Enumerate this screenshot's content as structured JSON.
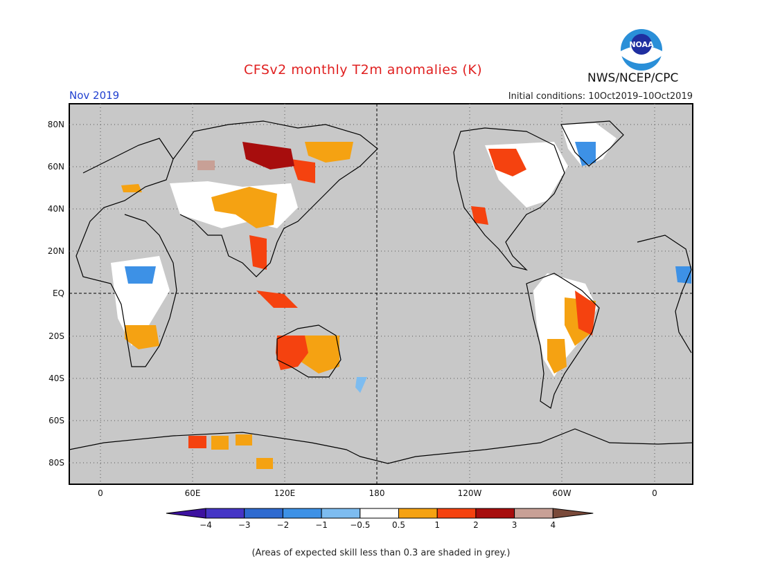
{
  "header": {
    "title": "CFSv2 monthly T2m anomalies (K)",
    "month": "Nov 2019",
    "initial_conditions": "Initial conditions: 10Oct2019–10Oct2019",
    "agency": "NWS/NCEP/CPC",
    "logo_text": "NOAA"
  },
  "map": {
    "lat_labels": [
      "80N",
      "60N",
      "40N",
      "20N",
      "EQ",
      "20S",
      "40S",
      "60S",
      "80S"
    ],
    "lon_labels": [
      "0",
      "60E",
      "120E",
      "180",
      "120W",
      "60W",
      "0"
    ],
    "background": "#c8c8c8"
  },
  "colorbar": {
    "labels": [
      "−4",
      "−3",
      "−2",
      "−1",
      "−0.5",
      "0.5",
      "1",
      "2",
      "3",
      "4"
    ],
    "colors": [
      "#3d12a0",
      "#4535c6",
      "#2e6ad0",
      "#3d91e6",
      "#7dbcf0",
      "#ffffff",
      "#f5a212",
      "#f5420f",
      "#a70d0d",
      "#c8a096",
      "#7a4a3a"
    ]
  },
  "footnote": "(Areas of expected skill less than 0.3 are shaded in grey.)"
}
